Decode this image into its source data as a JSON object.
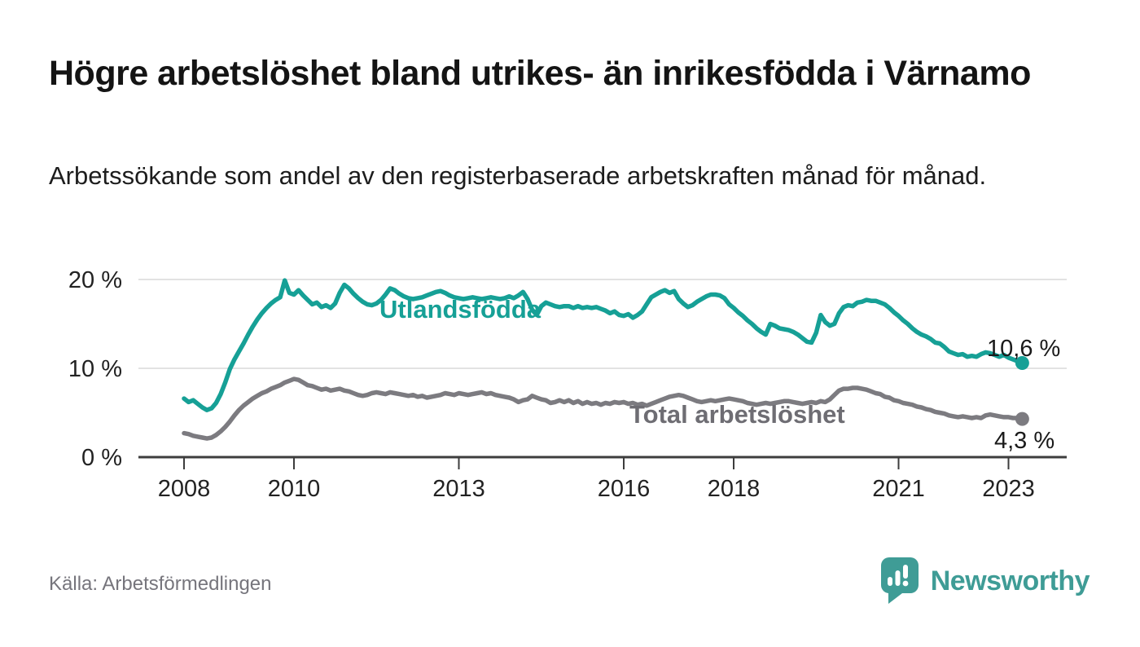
{
  "header": {
    "title": "Högre arbetslöshet bland utrikes- än inrikesfödda i Värnamo",
    "subtitle": "Arbetssökande som andel av den registerbaserade arbetskraften månad för månad."
  },
  "footer": {
    "source": "Källa: Arbetsförmedlingen",
    "brand": "Newsworthy"
  },
  "colors": {
    "utlandsfodda_line": "#16a096",
    "total_line": "#7c7b80",
    "total_label": "#6e6d73",
    "end_label_text": "#1a1a1a",
    "axis": "#3d3d3d",
    "gridline": "#d8d8d8",
    "tick_text": "#222222",
    "brand_teal": "#3f9c96"
  },
  "chart_data": {
    "type": "line",
    "title": "Högre arbetslöshet bland utrikes- än inrikesfödda i Värnamo",
    "subtitle": "Arbetssökande som andel av den registerbaserade arbetskraften månad för månad.",
    "x_unit": "month",
    "x_start": "2008-01",
    "x_end": "2023-04",
    "xlim": [
      2007.2,
      2024.3
    ],
    "ylim": [
      0,
      22
    ],
    "grid": "horizontal",
    "legend_position": "inline-labels",
    "x_tick_years": [
      2008,
      2010,
      2013,
      2016,
      2018,
      2021,
      2023
    ],
    "y_ticks": [
      {
        "value": 0,
        "label": "0 %"
      },
      {
        "value": 10,
        "label": "10 %"
      },
      {
        "value": 20,
        "label": "20 %"
      }
    ],
    "series": [
      {
        "name": "Utlandsfödda",
        "color": "#16a096",
        "end_label": "10,6 %",
        "end_value": 10.6,
        "values": [
          6.6,
          6.2,
          6.4,
          6.0,
          5.6,
          5.3,
          5.5,
          6.1,
          7.1,
          8.4,
          9.9,
          11.0,
          11.9,
          12.8,
          13.8,
          14.7,
          15.5,
          16.2,
          16.8,
          17.3,
          17.7,
          18.0,
          19.9,
          18.5,
          18.3,
          18.8,
          18.2,
          17.7,
          17.2,
          17.4,
          16.9,
          17.1,
          16.8,
          17.3,
          18.5,
          19.4,
          19.0,
          18.4,
          17.9,
          17.5,
          17.2,
          17.1,
          17.3,
          17.7,
          18.3,
          19.0,
          18.8,
          18.4,
          18.1,
          17.9,
          17.8,
          17.9,
          18.0,
          18.2,
          18.4,
          18.6,
          18.7,
          18.5,
          18.2,
          18.0,
          17.9,
          17.8,
          17.9,
          18.0,
          17.9,
          17.8,
          17.9,
          18.0,
          17.9,
          17.8,
          17.9,
          18.1,
          17.9,
          18.2,
          18.6,
          17.8,
          16.6,
          16.0,
          17.0,
          17.4,
          17.2,
          17.0,
          16.9,
          17.0,
          17.0,
          16.8,
          17.0,
          16.8,
          16.9,
          16.8,
          16.9,
          16.7,
          16.5,
          16.2,
          16.4,
          16.0,
          15.9,
          16.1,
          15.7,
          16.0,
          16.4,
          17.2,
          18.0,
          18.3,
          18.6,
          18.8,
          18.5,
          18.7,
          17.8,
          17.3,
          16.9,
          17.1,
          17.5,
          17.8,
          18.1,
          18.3,
          18.3,
          18.2,
          17.9,
          17.2,
          16.8,
          16.3,
          15.9,
          15.4,
          15.0,
          14.5,
          14.1,
          13.8,
          15.0,
          14.8,
          14.5,
          14.4,
          14.3,
          14.1,
          13.8,
          13.4,
          13.0,
          12.9,
          14.0,
          16.0,
          15.2,
          14.8,
          15.0,
          16.2,
          16.9,
          17.1,
          17.0,
          17.4,
          17.5,
          17.7,
          17.6,
          17.6,
          17.4,
          17.2,
          16.8,
          16.3,
          15.9,
          15.4,
          15.0,
          14.5,
          14.1,
          13.8,
          13.6,
          13.3,
          12.9,
          12.8,
          12.4,
          11.9,
          11.7,
          11.5,
          11.6,
          11.3,
          11.4,
          11.3,
          11.6,
          11.8,
          11.7,
          11.5,
          11.3,
          11.5,
          11.2,
          11.0,
          10.8,
          10.6
        ]
      },
      {
        "name": "Total arbetslöshet",
        "color": "#7c7b80",
        "end_label": "4,3 %",
        "end_value": 4.3,
        "values": [
          2.7,
          2.6,
          2.4,
          2.3,
          2.2,
          2.1,
          2.2,
          2.5,
          2.9,
          3.4,
          4.0,
          4.7,
          5.3,
          5.8,
          6.2,
          6.6,
          6.9,
          7.2,
          7.4,
          7.7,
          7.9,
          8.1,
          8.4,
          8.6,
          8.8,
          8.7,
          8.4,
          8.1,
          8.0,
          7.8,
          7.6,
          7.7,
          7.5,
          7.6,
          7.7,
          7.5,
          7.4,
          7.2,
          7.0,
          6.9,
          7.0,
          7.2,
          7.3,
          7.2,
          7.1,
          7.3,
          7.2,
          7.1,
          7.0,
          6.9,
          7.0,
          6.8,
          6.9,
          6.7,
          6.8,
          6.9,
          7.0,
          7.2,
          7.1,
          7.0,
          7.2,
          7.1,
          7.0,
          7.1,
          7.2,
          7.3,
          7.1,
          7.2,
          7.0,
          6.9,
          6.8,
          6.7,
          6.5,
          6.2,
          6.4,
          6.5,
          6.9,
          6.7,
          6.5,
          6.4,
          6.1,
          6.2,
          6.4,
          6.2,
          6.4,
          6.1,
          6.3,
          6.0,
          6.2,
          6.0,
          6.1,
          5.9,
          6.1,
          6.0,
          6.2,
          6.1,
          6.2,
          6.0,
          6.1,
          5.9,
          6.0,
          5.8,
          6.0,
          6.2,
          6.4,
          6.6,
          6.8,
          6.9,
          7.0,
          6.9,
          6.7,
          6.5,
          6.3,
          6.2,
          6.3,
          6.4,
          6.3,
          6.4,
          6.5,
          6.6,
          6.5,
          6.4,
          6.3,
          6.1,
          6.0,
          5.9,
          6.0,
          6.1,
          6.0,
          6.1,
          6.2,
          6.3,
          6.3,
          6.2,
          6.1,
          6.0,
          6.1,
          6.2,
          6.1,
          6.3,
          6.2,
          6.5,
          7.0,
          7.5,
          7.7,
          7.7,
          7.8,
          7.8,
          7.7,
          7.6,
          7.4,
          7.2,
          7.1,
          6.8,
          6.7,
          6.4,
          6.3,
          6.1,
          6.0,
          5.9,
          5.7,
          5.6,
          5.4,
          5.3,
          5.1,
          5.0,
          4.9,
          4.7,
          4.6,
          4.5,
          4.6,
          4.5,
          4.4,
          4.5,
          4.4,
          4.7,
          4.8,
          4.7,
          4.6,
          4.5,
          4.5,
          4.4,
          4.4,
          4.3
        ]
      }
    ]
  }
}
